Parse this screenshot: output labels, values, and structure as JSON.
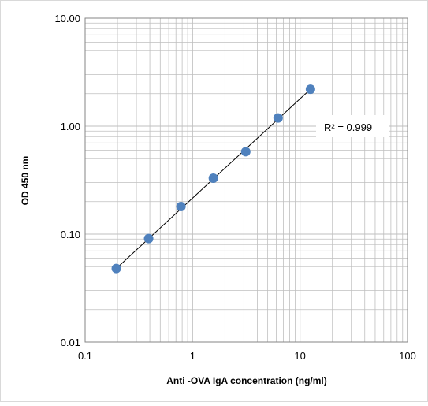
{
  "chart_data": {
    "type": "scatter",
    "title": "",
    "xlabel": "Anti -OVA IgA concentration (ng/ml)",
    "ylabel": "OD 450 nm",
    "x_scale": "log",
    "y_scale": "log",
    "xlim": [
      0.1,
      100
    ],
    "ylim": [
      0.01,
      10
    ],
    "x_tick_labels": [
      "0.1",
      "1",
      "10",
      "100"
    ],
    "y_tick_labels": [
      "0.01",
      "0.10",
      "1.00",
      "10.00"
    ],
    "grid": true,
    "legend": "none",
    "series": [
      {
        "x": [
          0.195,
          0.39,
          0.78,
          1.56,
          3.125,
          6.25,
          12.5
        ],
        "y": [
          0.048,
          0.091,
          0.18,
          0.33,
          0.58,
          1.19,
          2.2
        ]
      }
    ],
    "trendline": {
      "type": "power",
      "x_range": [
        0.195,
        12.5
      ],
      "y_range": [
        0.048,
        2.2
      ],
      "label": "R² = 0.999"
    },
    "colors": {
      "marker": "#4f81bd",
      "trendline": "#000000",
      "grid": "#bfbfbf",
      "axis": "#868686"
    }
  }
}
